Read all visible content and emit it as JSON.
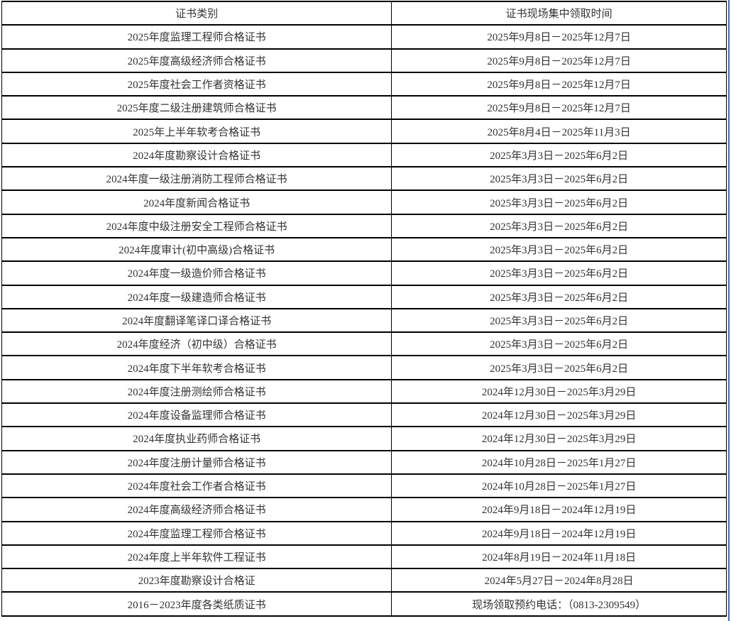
{
  "page": {
    "background_color": "#ffffff",
    "border_color": "#000000",
    "text_color": "#333333",
    "right_edge_line_color": "#3a6fb0"
  },
  "table": {
    "headers": [
      "证书类别",
      "证书现场集中领取时间"
    ],
    "rows": [
      [
        "2025年度监理工程师合格证书",
        "2025年9月8日－2025年12月7日"
      ],
      [
        "2025年度高级经济师合格证书",
        "2025年9月8日－2025年12月7日"
      ],
      [
        "2025年度社会工作者资格证书",
        "2025年9月8日－2025年12月7日"
      ],
      [
        "2025年度二级注册建筑师合格证书",
        "2025年9月8日－2025年12月7日"
      ],
      [
        "2025年上半年软考合格证书",
        "2025年8月4日－2025年11月3日"
      ],
      [
        "2024年度勘察设计合格证书",
        "2025年3月3日－2025年6月2日"
      ],
      [
        "2024年度一级注册消防工程师合格证书",
        "2025年3月3日－2025年6月2日"
      ],
      [
        "2024年度新闻合格证书",
        "2025年3月3日－2025年6月2日"
      ],
      [
        "2024年度中级注册安全工程师合格证书",
        "2025年3月3日－2025年6月2日"
      ],
      [
        "2024年度审计(初中高级)合格证书",
        "2025年3月3日－2025年6月2日"
      ],
      [
        "2024年度一级造价师合格证书",
        "2025年3月3日－2025年6月2日"
      ],
      [
        "2024年度一级建造师合格证书",
        "2025年3月3日－2025年6月2日"
      ],
      [
        "2024年度翻译笔译口译合格证书",
        "2025年3月3日－2025年6月2日"
      ],
      [
        "2024年度经济（初中级）合格证书",
        "2025年3月3日－2025年6月2日"
      ],
      [
        "2024年度下半年软考合格证书",
        "2025年3月3日－2025年6月2日"
      ],
      [
        "2024年度注册测绘师合格证书",
        "2024年12月30日－2025年3月29日"
      ],
      [
        "2024年度设备监理师合格证书",
        "2024年12月30日－2025年3月29日"
      ],
      [
        "2024年度执业药师合格证书",
        "2024年12月30日－2025年3月29日"
      ],
      [
        "2024年度注册计量师合格证书",
        "2024年10月28日－2025年1月27日"
      ],
      [
        "2024年度社会工作者合格证书",
        "2024年10月28日－2025年1月27日"
      ],
      [
        "2024年度高级经济师合格证书",
        "2024年9月18日－2024年12月19日"
      ],
      [
        "2024年度监理工程师合格证书",
        "2024年9月18日－2024年12月19日"
      ],
      [
        "2024年度上半年软件工程证书",
        "2024年8月19日－2024年11月18日"
      ],
      [
        "2023年度勘察设计合格证",
        "2024年5月27日－2024年8月28日"
      ],
      [
        "2016－2023年度各类纸质证书",
        "现场领取预约电话：（0813-2309549）"
      ]
    ]
  }
}
